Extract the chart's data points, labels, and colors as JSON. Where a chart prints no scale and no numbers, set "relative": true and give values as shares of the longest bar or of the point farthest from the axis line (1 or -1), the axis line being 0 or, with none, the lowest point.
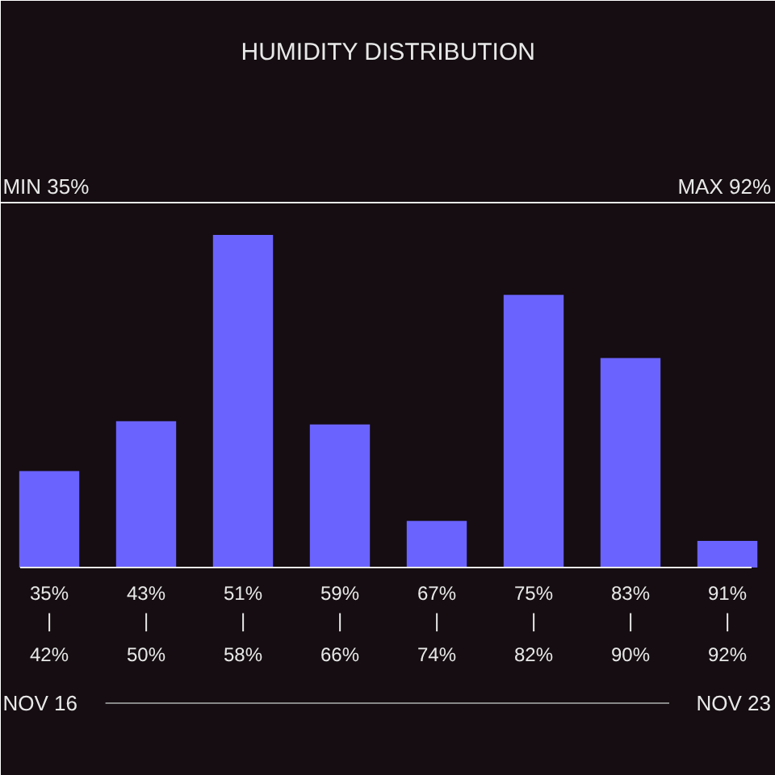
{
  "chart_data": {
    "type": "bar",
    "title": "HUMIDITY DISTRIBUTION",
    "relative": true,
    "color": "#6b63fd",
    "categories": [
      "35%\n|\n42%",
      "43%\n|\n50%",
      "51%\n|\n58%",
      "59%\n|\n66%",
      "67%\n|\n74%",
      "75%\n|\n82%",
      "83%\n|\n90%",
      "91%\n|\n92%"
    ],
    "values": [
      0.29,
      0.44,
      1,
      0.43,
      0.14,
      0.82,
      0.63,
      0.08
    ],
    "annotations": [
      "MIN 35%",
      "MAX 92%",
      "NOV 16",
      "NOV 23"
    ],
    "grid": false
  }
}
